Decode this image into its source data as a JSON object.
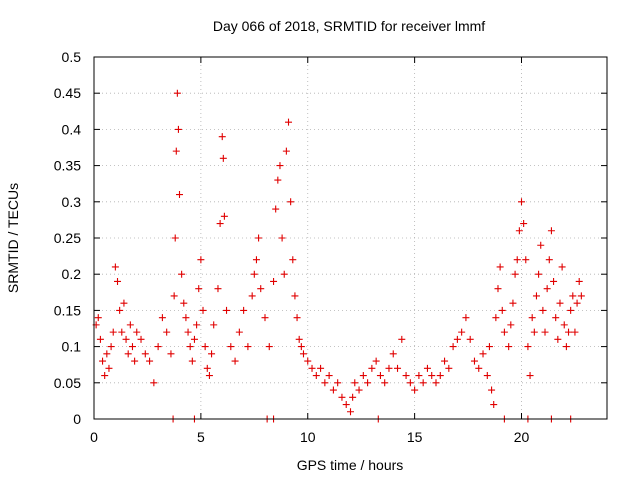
{
  "chart_data": {
    "type": "scatter",
    "title": "Day 066 of 2018, SRMTID for receiver lmmf",
    "xlabel": "GPS time / hours",
    "ylabel": "SRMTID / TECUs",
    "xlim": [
      0,
      24
    ],
    "ylim": [
      0,
      0.5
    ],
    "xticks": [
      0,
      5,
      10,
      15,
      20
    ],
    "yticks": [
      0,
      0.05,
      0.1,
      0.15,
      0.2,
      0.25,
      0.3,
      0.35,
      0.4,
      0.45,
      0.5
    ],
    "ytick_labels": [
      "0",
      "0.05",
      "0.1",
      "0.15",
      "0.2",
      "0.25",
      "0.3",
      "0.35",
      "0.4",
      "0.45",
      "0.5"
    ],
    "grid": true,
    "marker": "+",
    "color": "#e00000",
    "series": [
      {
        "name": "SRMTID",
        "points": [
          [
            0.1,
            0.13
          ],
          [
            0.2,
            0.14
          ],
          [
            0.3,
            0.11
          ],
          [
            0.4,
            0.08
          ],
          [
            0.5,
            0.06
          ],
          [
            0.6,
            0.09
          ],
          [
            0.7,
            0.07
          ],
          [
            0.8,
            0.1
          ],
          [
            0.9,
            0.12
          ],
          [
            1.0,
            0.21
          ],
          [
            1.1,
            0.19
          ],
          [
            1.2,
            0.15
          ],
          [
            1.3,
            0.12
          ],
          [
            1.4,
            0.16
          ],
          [
            1.5,
            0.11
          ],
          [
            1.6,
            0.09
          ],
          [
            1.7,
            0.13
          ],
          [
            1.8,
            0.1
          ],
          [
            1.9,
            0.08
          ],
          [
            2.0,
            0.12
          ],
          [
            2.2,
            0.11
          ],
          [
            2.4,
            0.09
          ],
          [
            2.6,
            0.08
          ],
          [
            2.8,
            0.05
          ],
          [
            3.0,
            0.1
          ],
          [
            3.2,
            0.14
          ],
          [
            3.4,
            0.12
          ],
          [
            3.6,
            0.09
          ],
          [
            3.75,
            0.17
          ],
          [
            3.8,
            0.25
          ],
          [
            3.85,
            0.37
          ],
          [
            3.9,
            0.45
          ],
          [
            3.95,
            0.4
          ],
          [
            4.0,
            0.31
          ],
          [
            4.1,
            0.2
          ],
          [
            4.2,
            0.16
          ],
          [
            4.3,
            0.14
          ],
          [
            4.4,
            0.12
          ],
          [
            4.5,
            0.1
          ],
          [
            4.6,
            0.08
          ],
          [
            4.7,
            0.11
          ],
          [
            4.8,
            0.13
          ],
          [
            4.9,
            0.18
          ],
          [
            5.0,
            0.22
          ],
          [
            5.1,
            0.15
          ],
          [
            5.2,
            0.1
          ],
          [
            5.3,
            0.07
          ],
          [
            5.4,
            0.06
          ],
          [
            5.5,
            0.09
          ],
          [
            5.6,
            0.13
          ],
          [
            5.8,
            0.18
          ],
          [
            5.9,
            0.27
          ],
          [
            6.0,
            0.39
          ],
          [
            6.05,
            0.36
          ],
          [
            6.1,
            0.28
          ],
          [
            6.2,
            0.15
          ],
          [
            6.4,
            0.1
          ],
          [
            6.6,
            0.08
          ],
          [
            6.8,
            0.12
          ],
          [
            7.0,
            0.15
          ],
          [
            7.2,
            0.1
          ],
          [
            7.4,
            0.17
          ],
          [
            7.5,
            0.2
          ],
          [
            7.6,
            0.22
          ],
          [
            7.7,
            0.25
          ],
          [
            7.8,
            0.18
          ],
          [
            8.0,
            0.14
          ],
          [
            8.2,
            0.1
          ],
          [
            8.4,
            0.19
          ],
          [
            8.5,
            0.29
          ],
          [
            8.6,
            0.33
          ],
          [
            8.7,
            0.35
          ],
          [
            8.8,
            0.25
          ],
          [
            8.9,
            0.2
          ],
          [
            9.0,
            0.37
          ],
          [
            9.1,
            0.41
          ],
          [
            9.2,
            0.3
          ],
          [
            9.3,
            0.22
          ],
          [
            9.4,
            0.17
          ],
          [
            9.5,
            0.14
          ],
          [
            9.6,
            0.11
          ],
          [
            9.7,
            0.1
          ],
          [
            9.8,
            0.09
          ],
          [
            10.0,
            0.08
          ],
          [
            10.2,
            0.07
          ],
          [
            10.4,
            0.06
          ],
          [
            10.6,
            0.07
          ],
          [
            10.8,
            0.05
          ],
          [
            11.0,
            0.06
          ],
          [
            11.2,
            0.04
          ],
          [
            11.4,
            0.05
          ],
          [
            11.6,
            0.03
          ],
          [
            11.8,
            0.02
          ],
          [
            12.0,
            0.01
          ],
          [
            12.1,
            0.03
          ],
          [
            12.2,
            0.05
          ],
          [
            12.4,
            0.04
          ],
          [
            12.6,
            0.06
          ],
          [
            12.8,
            0.05
          ],
          [
            13.0,
            0.07
          ],
          [
            13.2,
            0.08
          ],
          [
            13.4,
            0.06
          ],
          [
            13.6,
            0.05
          ],
          [
            13.8,
            0.07
          ],
          [
            14.0,
            0.09
          ],
          [
            14.2,
            0.07
          ],
          [
            14.4,
            0.11
          ],
          [
            14.6,
            0.06
          ],
          [
            14.8,
            0.05
          ],
          [
            15.0,
            0.04
          ],
          [
            15.2,
            0.06
          ],
          [
            15.4,
            0.05
          ],
          [
            15.6,
            0.07
          ],
          [
            15.8,
            0.06
          ],
          [
            16.0,
            0.05
          ],
          [
            16.2,
            0.06
          ],
          [
            16.4,
            0.08
          ],
          [
            16.6,
            0.07
          ],
          [
            16.8,
            0.1
          ],
          [
            17.0,
            0.11
          ],
          [
            17.2,
            0.12
          ],
          [
            17.4,
            0.14
          ],
          [
            17.6,
            0.11
          ],
          [
            17.8,
            0.08
          ],
          [
            18.0,
            0.07
          ],
          [
            18.2,
            0.09
          ],
          [
            18.4,
            0.06
          ],
          [
            18.5,
            0.1
          ],
          [
            18.6,
            0.04
          ],
          [
            18.7,
            0.02
          ],
          [
            18.8,
            0.14
          ],
          [
            18.9,
            0.18
          ],
          [
            19.0,
            0.21
          ],
          [
            19.1,
            0.15
          ],
          [
            19.2,
            0.12
          ],
          [
            19.4,
            0.1
          ],
          [
            19.5,
            0.13
          ],
          [
            19.6,
            0.16
          ],
          [
            19.7,
            0.2
          ],
          [
            19.8,
            0.22
          ],
          [
            19.9,
            0.26
          ],
          [
            20.0,
            0.3
          ],
          [
            20.1,
            0.27
          ],
          [
            20.2,
            0.22
          ],
          [
            20.3,
            0.1
          ],
          [
            20.4,
            0.06
          ],
          [
            20.5,
            0.14
          ],
          [
            20.6,
            0.12
          ],
          [
            20.7,
            0.17
          ],
          [
            20.8,
            0.2
          ],
          [
            20.9,
            0.24
          ],
          [
            21.0,
            0.15
          ],
          [
            21.1,
            0.12
          ],
          [
            21.2,
            0.18
          ],
          [
            21.3,
            0.22
          ],
          [
            21.4,
            0.26
          ],
          [
            21.5,
            0.19
          ],
          [
            21.6,
            0.14
          ],
          [
            21.7,
            0.11
          ],
          [
            21.8,
            0.16
          ],
          [
            21.9,
            0.21
          ],
          [
            22.0,
            0.13
          ],
          [
            22.1,
            0.1
          ],
          [
            22.2,
            0.12
          ],
          [
            22.3,
            0.15
          ],
          [
            22.4,
            0.17
          ],
          [
            22.5,
            0.12
          ],
          [
            22.6,
            0.16
          ],
          [
            22.7,
            0.19
          ],
          [
            22.8,
            0.17
          ]
        ]
      },
      {
        "name": "markers at zero",
        "points": [
          [
            3.7,
            0
          ],
          [
            4.7,
            0
          ],
          [
            8.1,
            0
          ],
          [
            8.4,
            0
          ],
          [
            13.3,
            0
          ],
          [
            19.2,
            0
          ],
          [
            20.3,
            0
          ],
          [
            21.4,
            0
          ],
          [
            22.3,
            0
          ]
        ]
      }
    ]
  }
}
